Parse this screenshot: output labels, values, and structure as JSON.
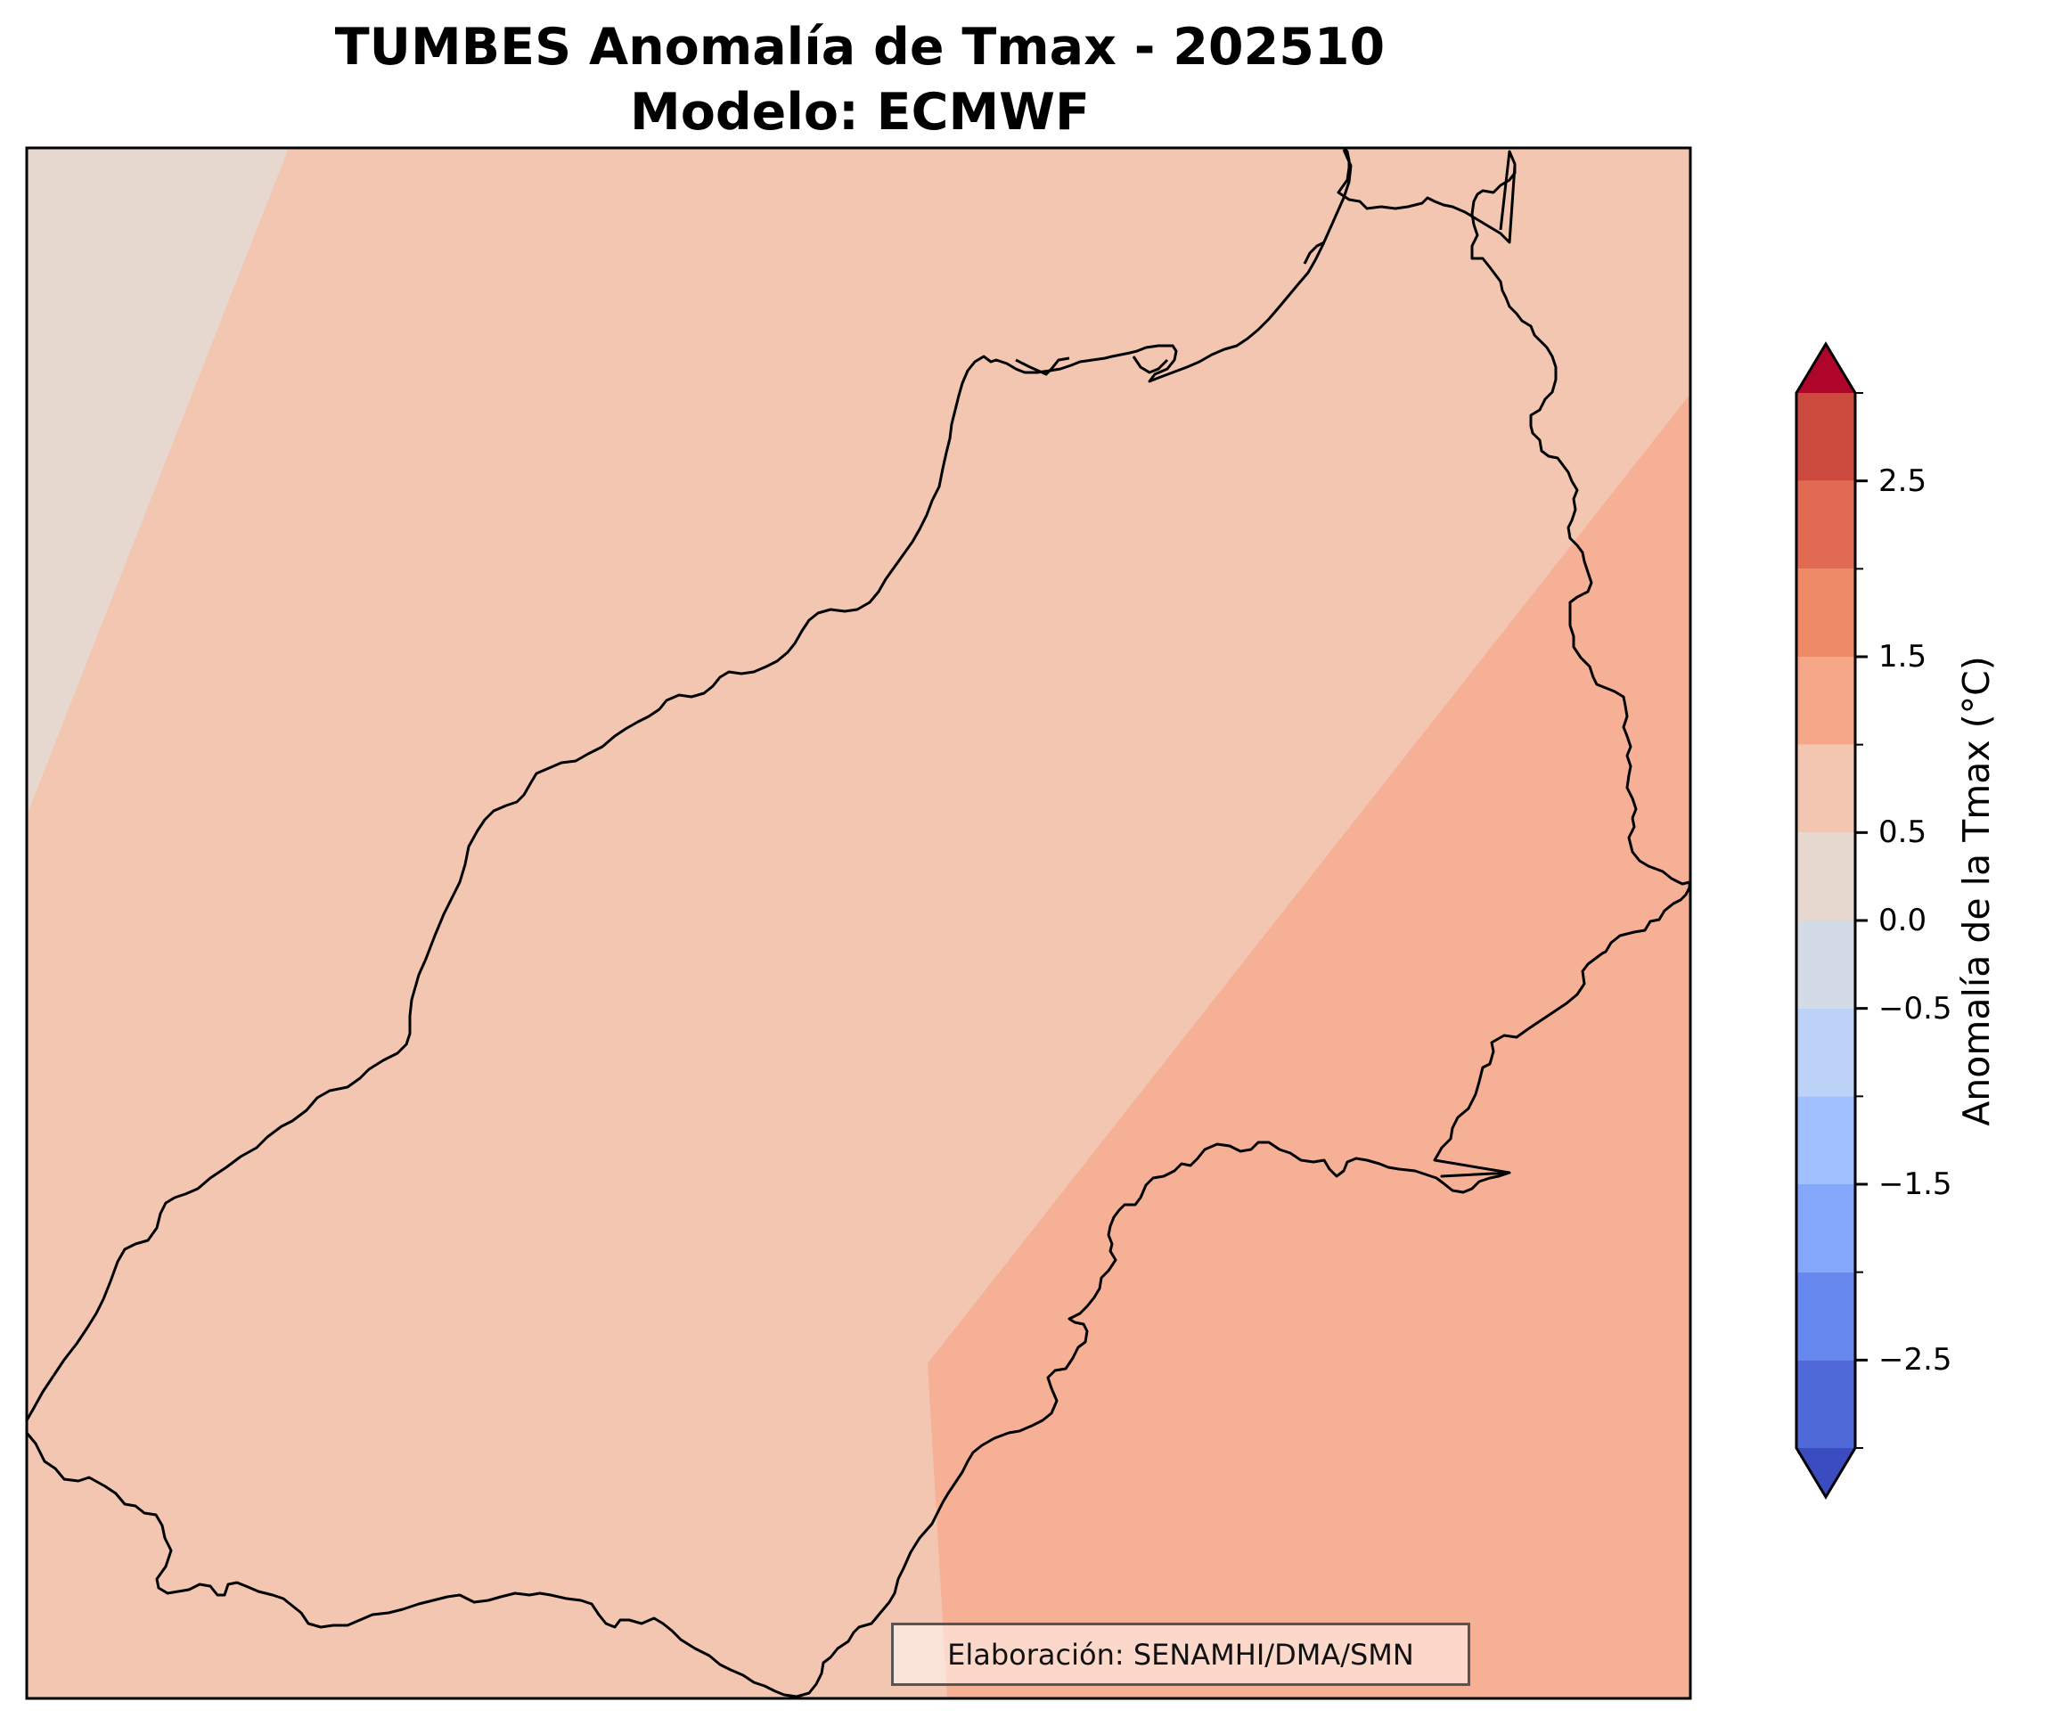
{
  "title": {
    "line1": "TUMBES Anomalía de Tmax - 202510",
    "line2": "Modelo: ECMWF"
  },
  "credit": "Elaboración: SENAMHI/DMA/SMN",
  "colorbar": {
    "label": "Anomalía de la Tmax (°C)",
    "levels": [
      -3.5,
      -3.0,
      -2.5,
      -2.0,
      -1.5,
      -1.0,
      -0.5,
      0.0,
      0.5,
      1.0,
      1.5,
      2.0,
      2.5,
      3.0,
      3.5
    ],
    "colors": [
      "#3a4cc0",
      "#4f69d9",
      "#6788ee",
      "#84a7fc",
      "#a1c0ff",
      "#bcd2f7",
      "#d3dbe7",
      "#e6d7cf",
      "#f2c6b0",
      "#f6a788",
      "#ef8a66",
      "#e06a52",
      "#cc4a3d",
      "#b0052a"
    ],
    "extend_low_color": "#3a4cc0",
    "extend_high_color": "#b0052a",
    "tick_labels": [
      {
        "value": 2.5,
        "text": "2.5"
      },
      {
        "value": 1.5,
        "text": "1.5"
      },
      {
        "value": 0.5,
        "text": "0.5"
      },
      {
        "value": 0.0,
        "text": "0.0"
      },
      {
        "value": -0.5,
        "text": "−0.5"
      },
      {
        "value": -1.5,
        "text": "−1.5"
      },
      {
        "value": -2.5,
        "text": "−2.5"
      }
    ]
  },
  "map": {
    "field_colors": {
      "near_zero": "#e6d7cf",
      "low_positive": "#f2c6b0",
      "mid_positive": "#f6b095"
    },
    "boundary_color": "#000000"
  }
}
